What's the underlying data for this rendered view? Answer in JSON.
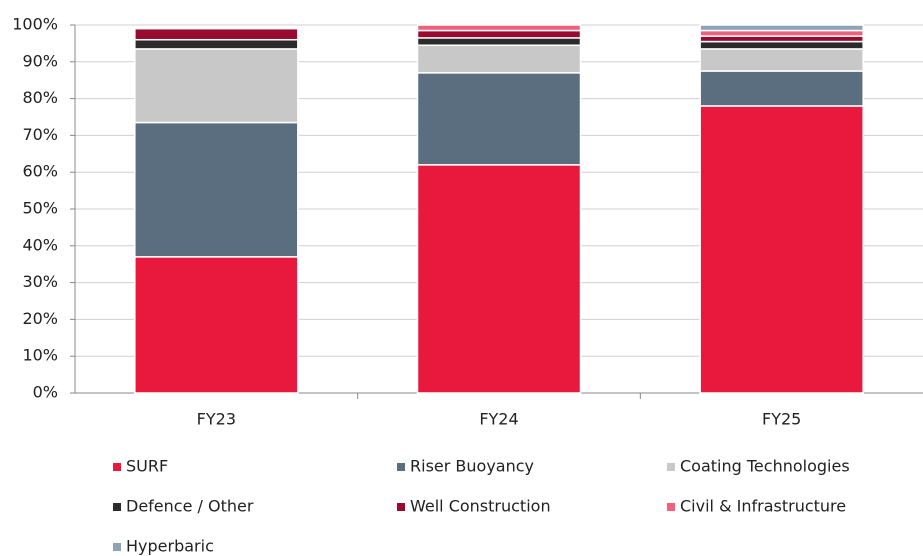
{
  "chart_data": {
    "type": "stacked_bar",
    "categories": [
      "FY23",
      "FY24",
      "FY25"
    ],
    "series": [
      {
        "name": "SURF",
        "color": "#e8193c",
        "values": [
          37,
          62,
          78
        ]
      },
      {
        "name": "Riser Buoyancy",
        "color": "#5b6e80",
        "values": [
          36.5,
          25,
          9.5
        ]
      },
      {
        "name": "Coating Technologies",
        "color": "#c8c8c8",
        "values": [
          20,
          7.5,
          6
        ]
      },
      {
        "name": "Defence / Other",
        "color": "#2b2b2b",
        "values": [
          2.5,
          2,
          2
        ]
      },
      {
        "name": "Well Construction",
        "color": "#9a0a2e",
        "values": [
          3,
          2,
          1.5
        ]
      },
      {
        "name": "Civil & Infrastructure",
        "color": "#f06078",
        "values": [
          0,
          1.5,
          1.5
        ]
      },
      {
        "name": "Hyperbaric",
        "color": "#8fa3b6",
        "values": [
          0,
          0,
          1.5
        ]
      }
    ],
    "ylim": [
      0,
      100
    ],
    "yticks": [
      {
        "value": 0,
        "label": "0%"
      },
      {
        "value": 10,
        "label": "10%"
      },
      {
        "value": 20,
        "label": "20%"
      },
      {
        "value": 30,
        "label": "30%"
      },
      {
        "value": 40,
        "label": "40%"
      },
      {
        "value": 50,
        "label": "50%"
      },
      {
        "value": 60,
        "label": "60%"
      },
      {
        "value": 70,
        "label": "70%"
      },
      {
        "value": 80,
        "label": "80%"
      },
      {
        "value": 90,
        "label": "90%"
      },
      {
        "value": 100,
        "label": "100%"
      }
    ],
    "grid": true,
    "legend": "bottom"
  }
}
